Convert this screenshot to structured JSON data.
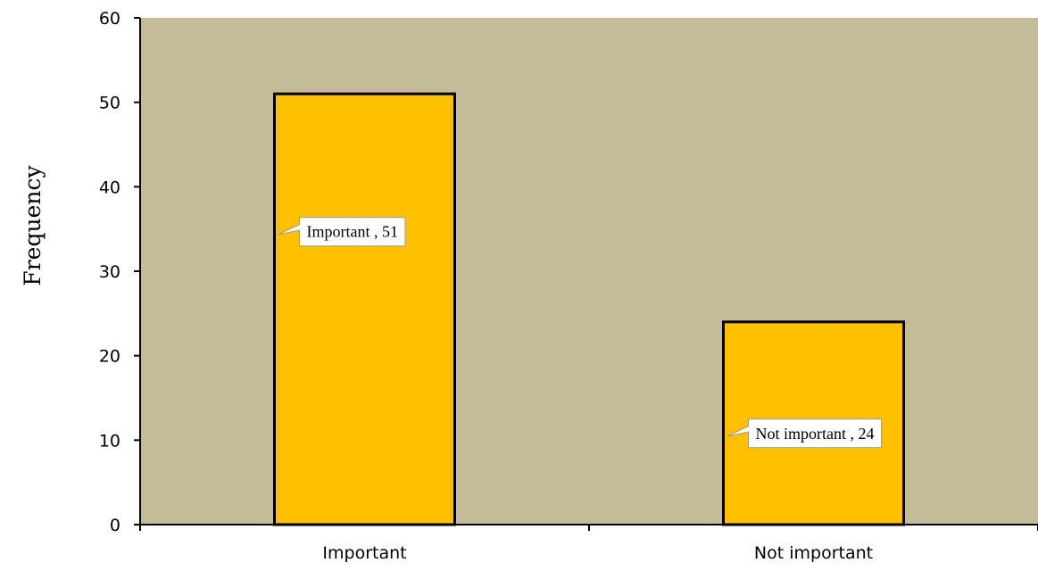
{
  "chart_data": {
    "type": "bar",
    "categories": [
      "Important",
      "Not important"
    ],
    "values": [
      51,
      24
    ],
    "title": "",
    "xlabel": "",
    "ylabel": "Frequency",
    "ylim": [
      0,
      60
    ],
    "yticks": [
      0,
      10,
      20,
      30,
      40,
      50,
      60
    ],
    "data_labels": [
      "Important , 51",
      "Not important , 24"
    ],
    "grid": false,
    "legend": "none",
    "colors": {
      "plot_background": "#C4BC98",
      "bar_fill": "#FFC000",
      "bar_stroke": "#000000",
      "axis": "#000000",
      "callout_fill": "#FFFFFF"
    }
  }
}
